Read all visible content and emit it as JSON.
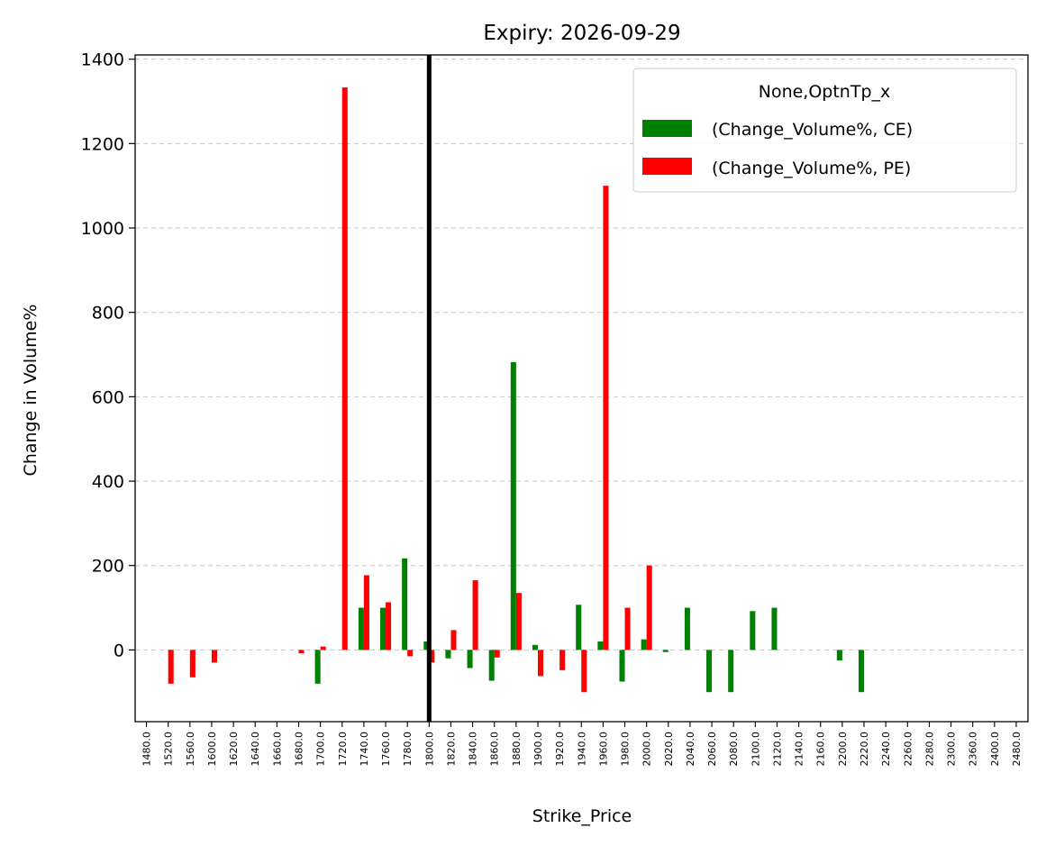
{
  "chart_data": {
    "type": "bar",
    "title": "Expiry: 2026-09-29",
    "xlabel": "Strike_Price",
    "ylabel": "Change in Volume%",
    "ylim": [
      -170,
      1410
    ],
    "yticks": [
      0,
      200,
      400,
      600,
      800,
      1000,
      1200,
      1400
    ],
    "grid": "y-dashed",
    "legend": {
      "title": "None,OptnTp_x",
      "placement": "top-right"
    },
    "categories": [
      "1480.0",
      "1520.0",
      "1560.0",
      "1600.0",
      "1620.0",
      "1640.0",
      "1660.0",
      "1680.0",
      "1700.0",
      "1720.0",
      "1740.0",
      "1760.0",
      "1780.0",
      "1800.0",
      "1820.0",
      "1840.0",
      "1860.0",
      "1880.0",
      "1900.0",
      "1920.0",
      "1940.0",
      "1960.0",
      "1980.0",
      "2000.0",
      "2020.0",
      "2040.0",
      "2060.0",
      "2080.0",
      "2100.0",
      "2120.0",
      "2140.0",
      "2160.0",
      "2200.0",
      "2220.0",
      "2240.0",
      "2260.0",
      "2280.0",
      "2300.0",
      "2360.0",
      "2400.0",
      "2480.0"
    ],
    "series": [
      {
        "name": "(Change_Volume%, CE)",
        "color": "#008000",
        "values": [
          null,
          null,
          null,
          null,
          null,
          null,
          null,
          null,
          -80,
          null,
          100,
          100,
          217,
          20,
          -20,
          -43,
          -73,
          682,
          12,
          null,
          107,
          20,
          -75,
          25,
          -5,
          100,
          -100,
          -100,
          92,
          100,
          null,
          null,
          -25,
          -100,
          null,
          null,
          null,
          null,
          null,
          null,
          null
        ]
      },
      {
        "name": "(Change_Volume%, PE)",
        "color": "#ff0000",
        "values": [
          null,
          -80,
          -65,
          -30,
          null,
          null,
          null,
          -8,
          8,
          1333,
          177,
          113,
          -15,
          -30,
          47,
          165,
          -18,
          135,
          -62,
          -48,
          -100,
          1100,
          100,
          200,
          null,
          null,
          null,
          null,
          null,
          null,
          null,
          null,
          null,
          null,
          null,
          null,
          null,
          null,
          null,
          null,
          null
        ]
      }
    ],
    "vline": {
      "category": "1800.0",
      "color": "#000000"
    }
  }
}
